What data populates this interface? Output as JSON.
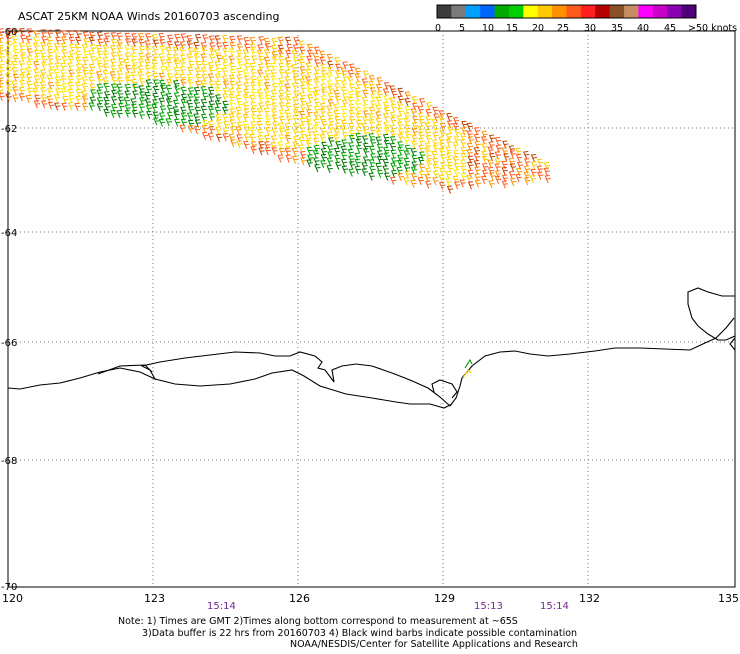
{
  "title": "ASCAT 25KM NOAA Winds 20160703 ascending",
  "legend": {
    "ticks": [
      "0",
      "5",
      "10",
      "15",
      "20",
      "25",
      "30",
      "35",
      "40",
      "45",
      ">50 knots"
    ],
    "colors": [
      "#3c3c3c",
      "#7a7a7a",
      "#00a0ff",
      "#0064ff",
      "#00aa00",
      "#00d000",
      "#ffff00",
      "#ffc800",
      "#ff9000",
      "#ff5a1e",
      "#ff2020",
      "#b40000",
      "#8c5028",
      "#c88c64",
      "#ff00ff",
      "#c800c8",
      "#8c00b4",
      "#500078"
    ]
  },
  "axes": {
    "lon_ticks": [
      "120",
      "123",
      "126",
      "129",
      "132",
      "135"
    ],
    "lat_ticks": [
      "-60",
      "-62",
      "-64",
      "-66",
      "-68",
      "-70"
    ],
    "lon_range": [
      120,
      135
    ],
    "lat_range": [
      -60,
      -70
    ],
    "grid": true
  },
  "pass_times": [
    "15:14",
    "15:13",
    "15:14"
  ],
  "colors": {
    "time_label": "#6e2a8c",
    "coast": "#000000",
    "grid": "#777777"
  },
  "notes": [
    "Note: 1) Times are GMT 2)Times along bottom correspond to measurement at ~65S",
    "3)Data buffer is 22 hrs from 20160703 4) Black wind barbs indicate possible contamination",
    "NOAA/NESDIS/Center for Satellite Applications and Research"
  ]
}
